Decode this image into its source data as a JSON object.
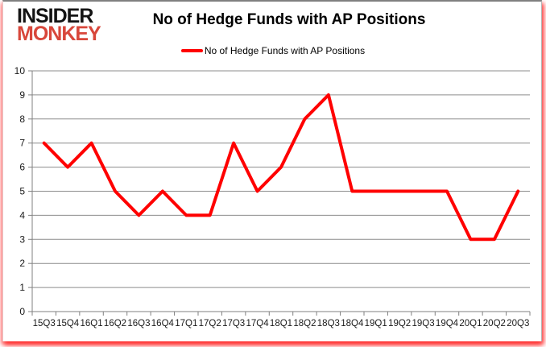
{
  "logo": {
    "line1": "INSIDER",
    "line2": "MONKEY"
  },
  "title": "No of Hedge Funds with AP Positions",
  "legend": {
    "label": "No of Hedge Funds with AP Positions",
    "line_color": "#ff0000"
  },
  "colors": {
    "series_line": "#ff0000",
    "gridline": "#8c8c8c",
    "axis": "#808080",
    "tick_label": "#1a1a1a",
    "logo_black": "#141414",
    "logo_red": "#d8473b"
  },
  "chart_data": {
    "type": "line",
    "title": "No of Hedge Funds with AP Positions",
    "categories": [
      "15Q3",
      "15Q4",
      "16Q1",
      "16Q2",
      "16Q3",
      "16Q4",
      "17Q1",
      "17Q2",
      "17Q3",
      "17Q4",
      "18Q1",
      "18Q2",
      "18Q3",
      "18Q4",
      "19Q1",
      "19Q2",
      "19Q3",
      "19Q4",
      "20Q1",
      "20Q2",
      "20Q3"
    ],
    "series": [
      {
        "name": "No of Hedge Funds with AP Positions",
        "color": "#ff0000",
        "values": [
          7,
          6,
          7,
          5,
          4,
          5,
          4,
          4,
          7,
          5,
          6,
          8,
          9,
          5,
          5,
          5,
          5,
          5,
          3,
          3,
          5
        ]
      }
    ],
    "xlabel": "",
    "ylabel": "",
    "ylim": [
      0,
      10
    ],
    "ytick_interval": 1,
    "yticks": [
      0,
      1,
      2,
      3,
      4,
      5,
      6,
      7,
      8,
      9,
      10
    ],
    "grid": true,
    "legend_position": "top-center"
  }
}
